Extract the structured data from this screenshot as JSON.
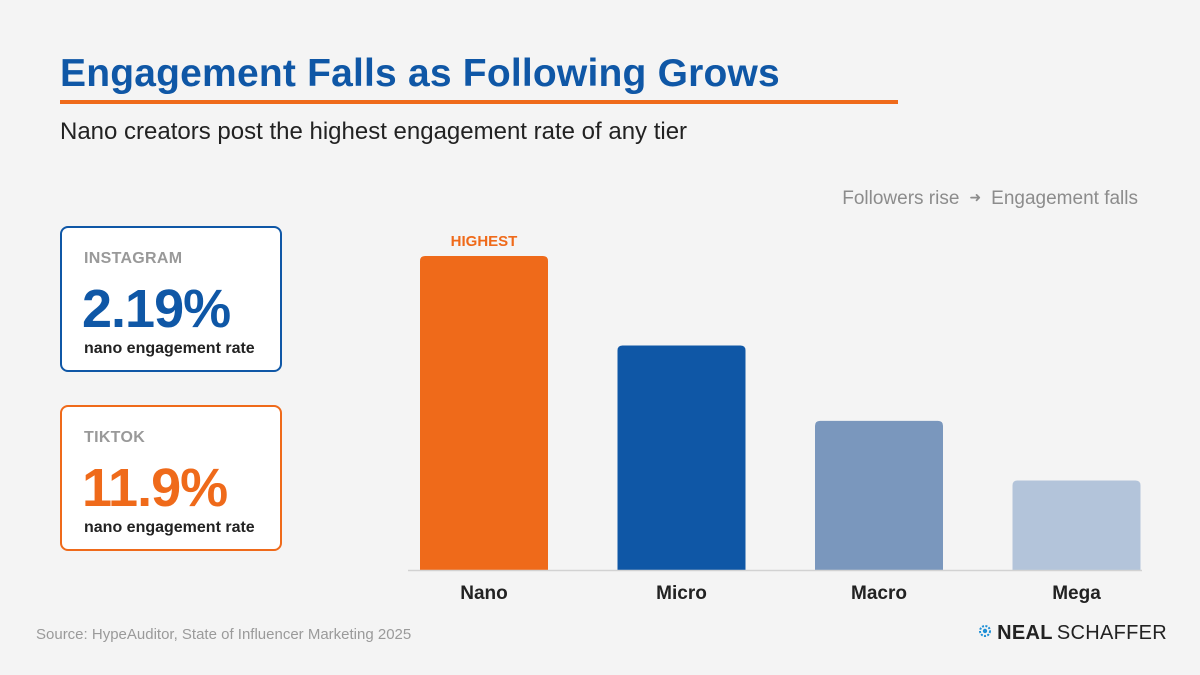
{
  "title": "Engagement Falls as Following Grows",
  "subtitle": "Nano creators post the highest engagement rate of any tier",
  "flow_note": {
    "left": "Followers rise",
    "right": "Engagement falls"
  },
  "cards": [
    {
      "platform": "INSTAGRAM",
      "value": "2.19%",
      "caption": "nano engagement rate",
      "color": "#0f57a6"
    },
    {
      "platform": "TIKTOK",
      "value": "11.9%",
      "caption": "nano engagement rate",
      "color": "#ef6a1a"
    }
  ],
  "chart_data": {
    "type": "bar",
    "categories": [
      "Nano",
      "Micro",
      "Macro",
      "Mega"
    ],
    "values": [
      100,
      71.5,
      47.5,
      28.5
    ],
    "colors": [
      "#ef6a1a",
      "#0f57a6",
      "#7a97bd",
      "#b3c4da"
    ],
    "annotations": [
      {
        "category": "Nano",
        "text": "HIGHEST",
        "color": "#ef6a1a"
      }
    ],
    "title": "",
    "xlabel": "",
    "ylabel": "",
    "ylim": [
      0,
      100
    ],
    "grid": false,
    "legend": "none"
  },
  "source": "Source: HypeAuditor, State of Influencer Marketing 2025",
  "brand": {
    "part1": "NEAL",
    "part2": "SCHAFFER",
    "logo_icon": "gear-icon"
  }
}
